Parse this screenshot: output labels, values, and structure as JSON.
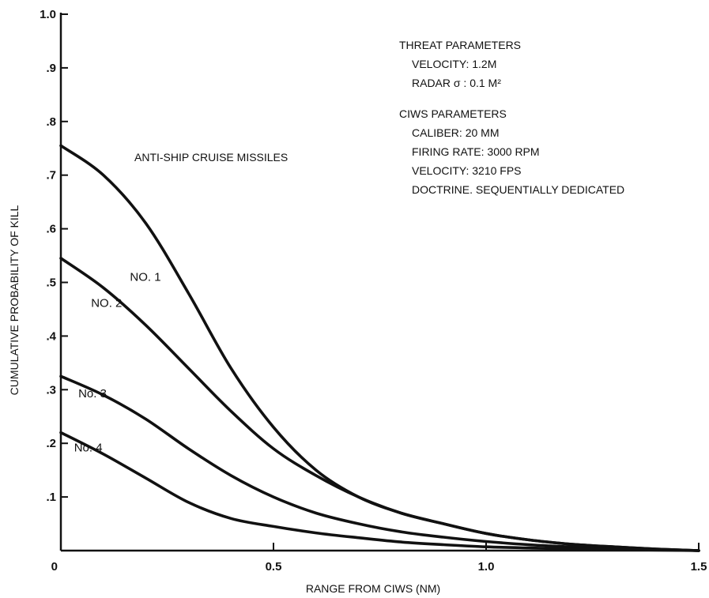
{
  "chart_data": {
    "type": "line",
    "title": "",
    "xlabel": "RANGE FROM CIWS (NM)",
    "ylabel": "CUMULATIVE PROBABILITY OF KILL",
    "xlim": [
      0,
      1.5
    ],
    "ylim": [
      0,
      1.0
    ],
    "x_ticks": [
      {
        "value": 0,
        "label": "0"
      },
      {
        "value": 0.5,
        "label": "0.5"
      },
      {
        "value": 1.0,
        "label": "1.0"
      },
      {
        "value": 1.5,
        "label": "1.5"
      }
    ],
    "y_ticks": [
      {
        "value": 0.1,
        "label": ".1"
      },
      {
        "value": 0.2,
        "label": ".2"
      },
      {
        "value": 0.3,
        "label": ".3"
      },
      {
        "value": 0.4,
        "label": ".4"
      },
      {
        "value": 0.5,
        "label": ".5"
      },
      {
        "value": 0.6,
        "label": ".6"
      },
      {
        "value": 0.7,
        "label": ".7"
      },
      {
        "value": 0.8,
        "label": ".8"
      },
      {
        "value": 0.9,
        "label": ".9"
      },
      {
        "value": 1.0,
        "label": "1.0"
      }
    ],
    "grid": false,
    "legend": "none",
    "annotations": [
      "ANTI-SHIP CRUISE MISSILES",
      "THREAT PARAMETERS",
      "VELOCITY: 1.2M",
      "RADAR σ : 0.1 M²",
      "CIWS PARAMETERS",
      "CALIBER: 20 MM",
      "FIRING RATE: 3000 RPM",
      "VELOCITY: 3210 FPS",
      "DOCTRINE. SEQUENTIALLY DEDICATED"
    ],
    "x": [
      0,
      0.1,
      0.2,
      0.3,
      0.4,
      0.5,
      0.6,
      0.7,
      0.8,
      0.9,
      1.0,
      1.1,
      1.2,
      1.3,
      1.4,
      1.5
    ],
    "series": [
      {
        "name": "NO. 1",
        "values": [
          0.755,
          0.7,
          0.61,
          0.48,
          0.34,
          0.23,
          0.15,
          0.1,
          0.07,
          0.05,
          0.032,
          0.02,
          0.012,
          0.007,
          0.003,
          0.0
        ]
      },
      {
        "name": "NO. 2",
        "values": [
          0.545,
          0.49,
          0.42,
          0.34,
          0.26,
          0.19,
          0.14,
          0.1,
          0.07,
          0.05,
          0.032,
          0.02,
          0.012,
          0.007,
          0.003,
          0.0
        ]
      },
      {
        "name": "No. 3",
        "values": [
          0.325,
          0.29,
          0.245,
          0.19,
          0.14,
          0.1,
          0.07,
          0.05,
          0.035,
          0.025,
          0.017,
          0.011,
          0.007,
          0.004,
          0.002,
          0.0
        ]
      },
      {
        "name": "No. 4",
        "values": [
          0.22,
          0.18,
          0.135,
          0.09,
          0.06,
          0.045,
          0.033,
          0.024,
          0.016,
          0.011,
          0.007,
          0.005,
          0.003,
          0.002,
          0.001,
          0.0
        ]
      }
    ]
  }
}
